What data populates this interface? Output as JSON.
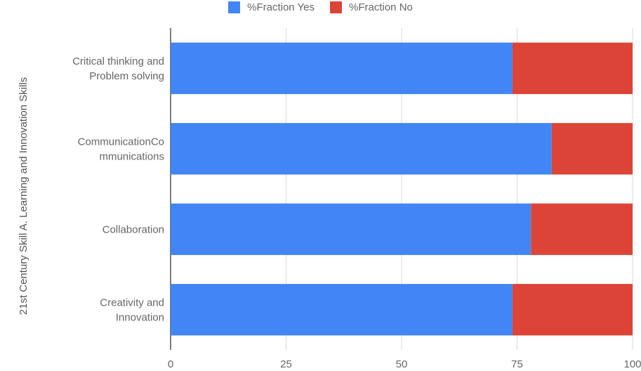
{
  "chart_data": {
    "type": "bar",
    "orientation": "horizontal",
    "stacked": true,
    "ylabel": "21st Century Skill A. Learning and Innovation Skills",
    "xlim": [
      0,
      100
    ],
    "xticks": [
      "0",
      "25",
      "50",
      "75",
      "100"
    ],
    "categories": [
      [
        "Critical thinking and",
        "Problem solving"
      ],
      [
        "CommunicationCo",
        "mmunications"
      ],
      [
        "Collaboration"
      ],
      [
        "Creativity and",
        "Innovation"
      ]
    ],
    "series": [
      {
        "name": "%Fraction Yes",
        "color": "#4285f4",
        "values": [
          74,
          82.5,
          78,
          74
        ]
      },
      {
        "name": "%Fraction No",
        "color": "#db4437",
        "values": [
          26,
          17.5,
          22,
          26
        ]
      }
    ],
    "legend_position": "top",
    "grid": true
  }
}
